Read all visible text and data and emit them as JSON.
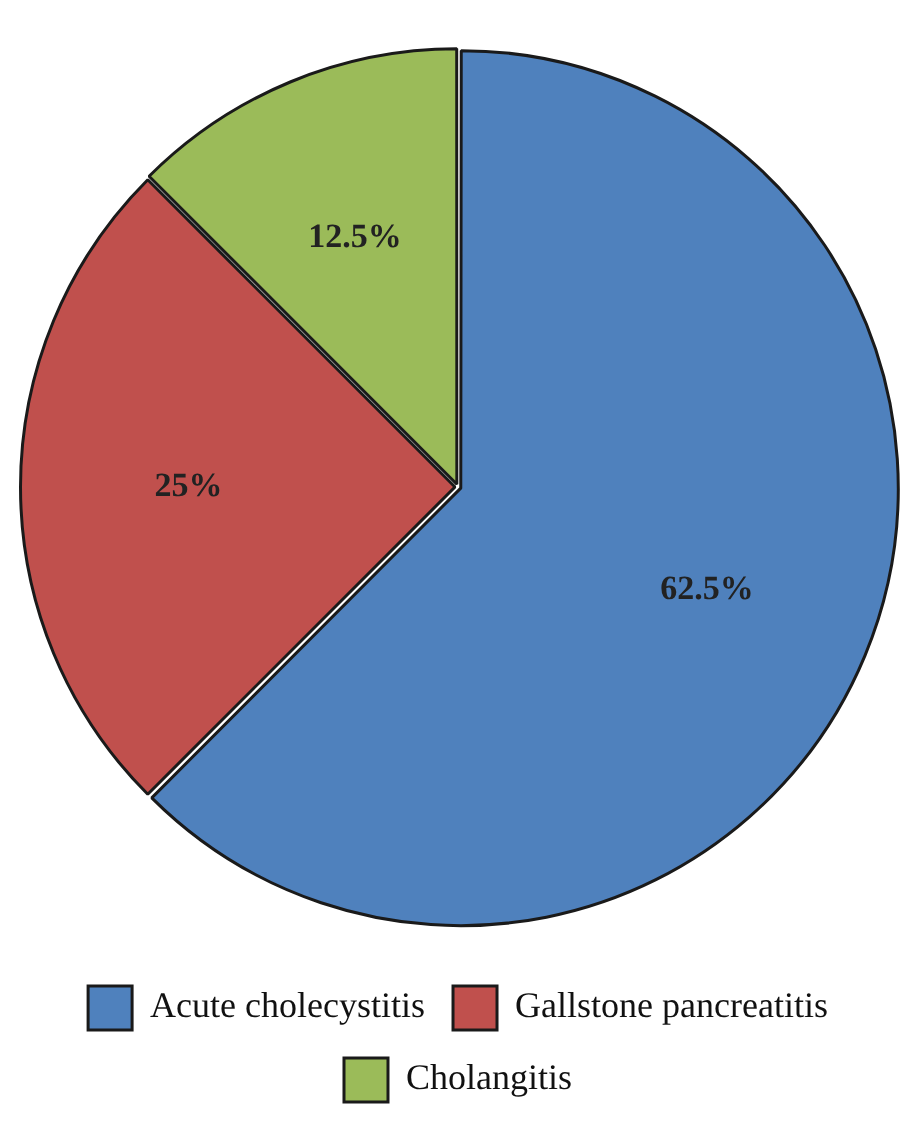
{
  "chart_data": {
    "type": "pie",
    "categories": [
      "Acute cholecystitis",
      "Gallstone pancreatitis",
      "Cholangitis"
    ],
    "values": [
      62.5,
      25,
      12.5
    ],
    "colors": [
      "#4f81bd",
      "#c0504d",
      "#9bbb59"
    ],
    "value_labels": [
      "62.5%",
      "25%",
      "12.5%"
    ],
    "legend": "bottom"
  }
}
